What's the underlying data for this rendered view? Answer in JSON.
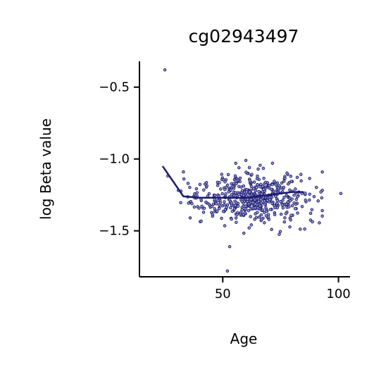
{
  "chart_data": {
    "type": "scatter",
    "title": "cg02943497",
    "xlabel": "Age",
    "ylabel": "log Beta value",
    "xlim": [
      14,
      105
    ],
    "ylim": [
      -1.82,
      -0.32
    ],
    "x_ticks": [
      {
        "value": 50,
        "label": "50"
      },
      {
        "value": 100,
        "label": "100"
      }
    ],
    "y_ticks": [
      {
        "value": -0.5,
        "label": "−0.5"
      },
      {
        "value": -1.0,
        "label": "−1.0"
      },
      {
        "value": -1.5,
        "label": "−1.5"
      }
    ],
    "grid": false,
    "legend": "none",
    "point_color": "#1a1a6e",
    "line_color": "#1a1a6e",
    "outliers": [
      {
        "x": 25,
        "y": -0.38
      },
      {
        "x": 53,
        "y": -1.61
      },
      {
        "x": 52,
        "y": -1.78
      },
      {
        "x": 60,
        "y": -1.01
      },
      {
        "x": 101,
        "y": -1.24
      }
    ],
    "scatter_generator": {
      "count": 560,
      "x_mean": 63,
      "x_sd": 12,
      "x_min": 18,
      "x_max": 93,
      "y_center": -1.27,
      "y_sd": 0.085,
      "seed": 17
    },
    "trend_line": {
      "x": [
        24,
        33,
        40,
        50,
        60,
        70,
        80,
        85
      ],
      "y": [
        -1.05,
        -1.26,
        -1.27,
        -1.27,
        -1.27,
        -1.25,
        -1.23,
        -1.23
      ]
    }
  }
}
